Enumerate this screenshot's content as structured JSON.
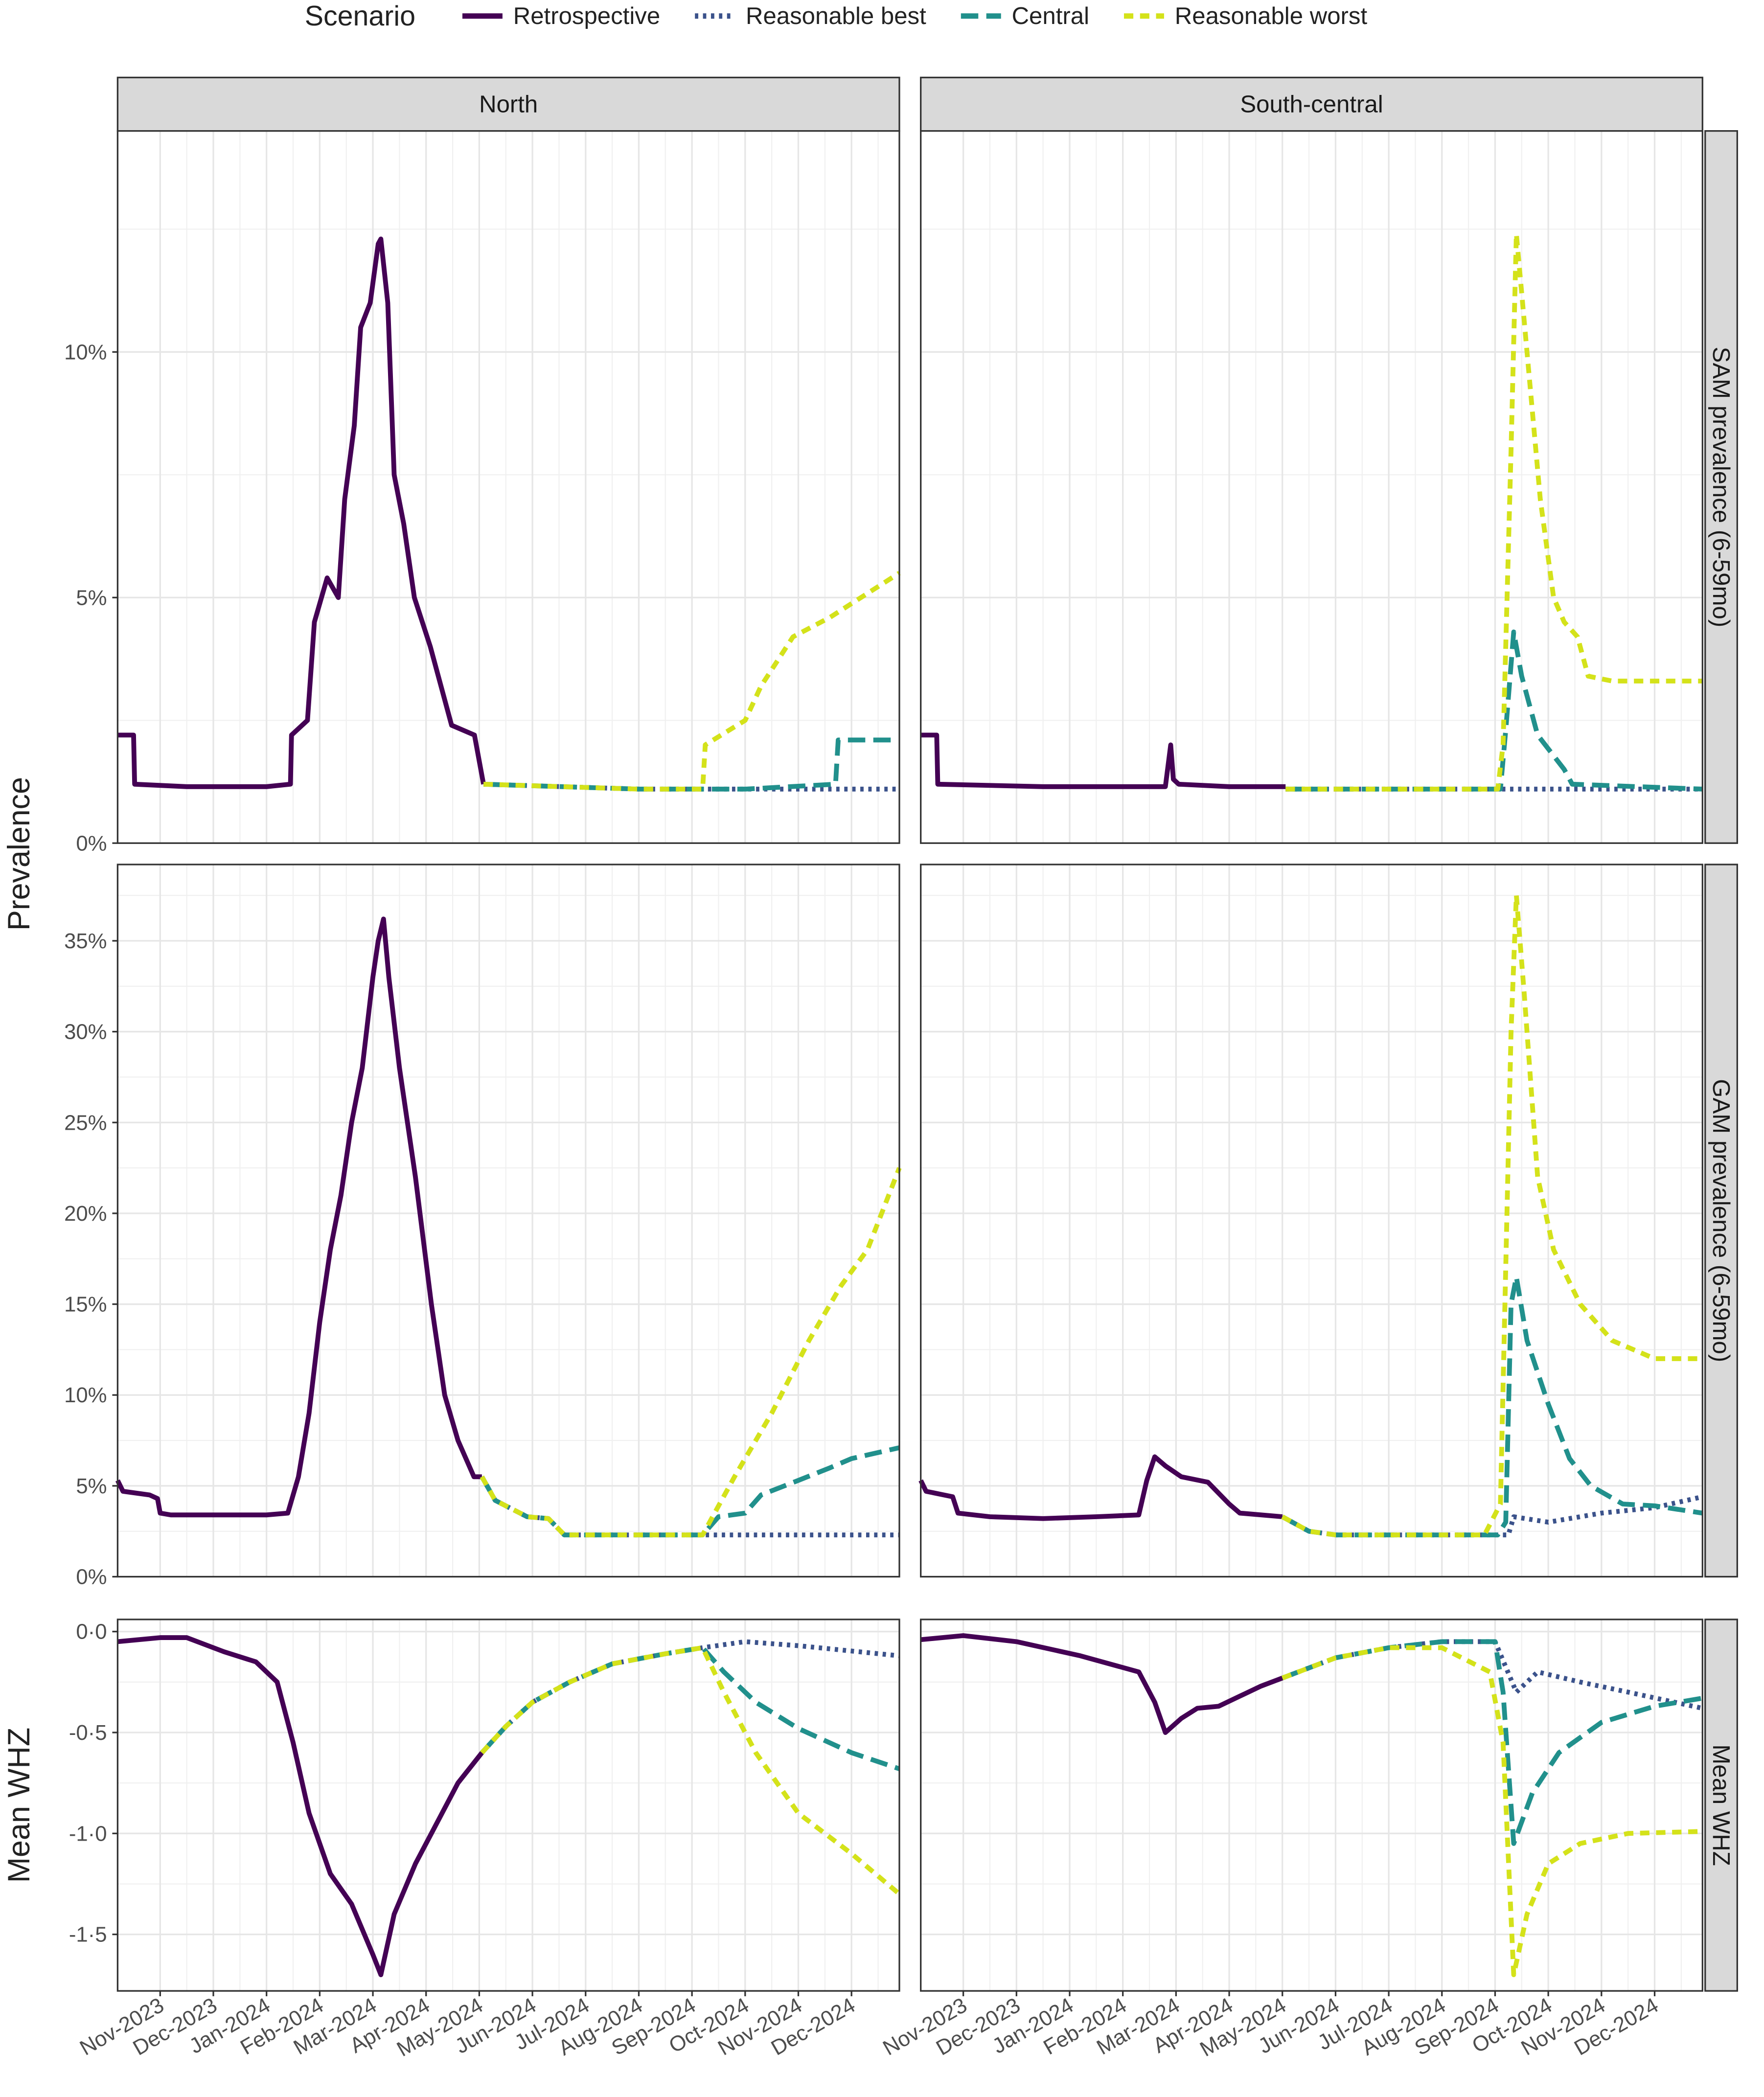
{
  "chart_data": {
    "type": "line",
    "legend_title": "Scenario",
    "legend_position": "top",
    "grid": true,
    "scenarios": [
      {
        "name": "Retrospective",
        "color": "#440154",
        "dash": "solid"
      },
      {
        "name": "Reasonable best",
        "color": "#3b528b",
        "dash": "dotted"
      },
      {
        "name": "Central",
        "color": "#21908c",
        "dash": "dashed"
      },
      {
        "name": "Reasonable worst",
        "color": "#d4e21a",
        "dash": "short-dashed"
      }
    ],
    "columns": [
      "North",
      "South-central"
    ],
    "ylabels": [
      "Prevalence",
      "Mean WHZ"
    ],
    "xlim": [
      0.2,
      14.9
    ],
    "xticks": [
      {
        "value": 1,
        "label": "Nov-2023"
      },
      {
        "value": 2,
        "label": "Dec-2023"
      },
      {
        "value": 3,
        "label": "Jan-2024"
      },
      {
        "value": 4,
        "label": "Feb-2024"
      },
      {
        "value": 5,
        "label": "Mar-2024"
      },
      {
        "value": 6,
        "label": "Apr-2024"
      },
      {
        "value": 7,
        "label": "May-2024"
      },
      {
        "value": 8,
        "label": "Jun-2024"
      },
      {
        "value": 9,
        "label": "Jul-2024"
      },
      {
        "value": 10,
        "label": "Aug-2024"
      },
      {
        "value": 11,
        "label": "Sep-2024"
      },
      {
        "value": 12,
        "label": "Oct-2024"
      },
      {
        "value": 13,
        "label": "Nov-2024"
      },
      {
        "value": 14,
        "label": "Dec-2024"
      }
    ],
    "rows": [
      {
        "label": "SAM prevalence (6-59mo)",
        "ylim": [
          0,
          14.5
        ],
        "yticks": [
          {
            "value": 0,
            "label": "0%"
          },
          {
            "value": 5,
            "label": "5%"
          },
          {
            "value": 10,
            "label": "10%"
          }
        ]
      },
      {
        "label": "GAM prevalence (6-59mo)",
        "ylim": [
          0,
          39.2
        ],
        "yticks": [
          {
            "value": 0,
            "label": "0%"
          },
          {
            "value": 5,
            "label": "5%"
          },
          {
            "value": 10,
            "label": "10%"
          },
          {
            "value": 15,
            "label": "15%"
          },
          {
            "value": 20,
            "label": "20%"
          },
          {
            "value": 25,
            "label": "25%"
          },
          {
            "value": 30,
            "label": "30%"
          },
          {
            "value": 35,
            "label": "35%"
          }
        ]
      },
      {
        "label": "Mean WHZ",
        "ylim": [
          -1.78,
          0.06
        ],
        "yticks": [
          {
            "value": -1.5,
            "label": "-1·5"
          },
          {
            "value": -1,
            "label": "-1·0"
          },
          {
            "value": -0.5,
            "label": "-0·5"
          },
          {
            "value": 0,
            "label": "0·0"
          }
        ]
      }
    ],
    "panels": [
      {
        "series": [
          {
            "x": [
              0.2,
              0.5,
              0.52,
              1.5,
              3.0,
              3.45,
              3.47,
              3.77,
              3.9,
              4.14,
              4.35,
              4.47,
              4.65,
              4.77,
              4.95,
              5.1,
              5.15,
              5.28,
              5.4,
              5.58,
              5.78,
              6.08,
              6.28,
              6.48,
              6.91,
              7.08
            ],
            "values": [
              2.2,
              2.2,
              1.2,
              1.15,
              1.15,
              1.2,
              2.2,
              2.5,
              4.5,
              5.4,
              5.0,
              7.0,
              8.5,
              10.5,
              11.0,
              12.2,
              12.3,
              11.0,
              7.5,
              6.5,
              5.0,
              4.0,
              3.2,
              2.4,
              2.2,
              1.2
            ]
          },
          {
            "x": [
              7.08,
              10,
              14.9
            ],
            "values": [
              1.2,
              1.1,
              1.1
            ]
          },
          {
            "x": [
              7.08,
              10,
              12,
              13.7,
              13.75,
              14.9
            ],
            "values": [
              1.2,
              1.1,
              1.1,
              1.2,
              2.1,
              2.1
            ]
          },
          {
            "x": [
              7.08,
              10,
              11.2,
              11.25,
              12.0,
              12.3,
              12.9,
              13.6,
              14.9
            ],
            "values": [
              1.2,
              1.1,
              1.1,
              2.0,
              2.5,
              3.2,
              4.2,
              4.6,
              5.5
            ]
          }
        ]
      },
      {
        "series": [
          {
            "x": [
              0.2,
              0.5,
              0.52,
              2.5,
              4.8,
              4.9,
              4.95,
              5.05,
              6.0,
              7.06
            ],
            "values": [
              2.2,
              2.2,
              1.2,
              1.15,
              1.15,
              2.0,
              1.3,
              1.2,
              1.15,
              1.15
            ]
          },
          {
            "x": [
              7.06,
              14.9
            ],
            "values": [
              1.1,
              1.1
            ]
          },
          {
            "x": [
              7.06,
              11.1,
              11.2,
              11.35,
              11.5,
              11.8,
              12.3,
              12.45,
              14.9
            ],
            "values": [
              1.1,
              1.1,
              2.3,
              4.3,
              3.4,
              2.2,
              1.5,
              1.2,
              1.1
            ]
          },
          {
            "x": [
              7.06,
              11.05,
              11.15,
              11.3,
              11.4,
              11.6,
              11.85,
              12.1,
              12.3,
              12.55,
              12.75,
              13.2,
              14.9
            ],
            "values": [
              1.1,
              1.1,
              2.0,
              8,
              12.4,
              10,
              7,
              5,
              4.5,
              4.2,
              3.4,
              3.3,
              3.3
            ]
          }
        ]
      },
      {
        "series": [
          {
            "x": [
              0.2,
              0.3,
              0.8,
              0.95,
              1.0,
              1.2,
              3.0,
              3.4,
              3.6,
              3.8,
              4.0,
              4.2,
              4.4,
              4.6,
              4.8,
              5.0,
              5.1,
              5.2,
              5.3,
              5.5,
              5.8,
              6.1,
              6.35,
              6.6,
              6.9,
              7.05
            ],
            "values": [
              5.3,
              4.7,
              4.5,
              4.3,
              3.5,
              3.4,
              3.4,
              3.5,
              5.5,
              9,
              14,
              18,
              21,
              25,
              28,
              33,
              35,
              36.2,
              33,
              28,
              22,
              15,
              10,
              7.5,
              5.5,
              5.5
            ]
          },
          {
            "x": [
              7.05,
              7.3,
              7.9,
              8.3,
              8.6,
              14.9
            ],
            "values": [
              5.5,
              4.2,
              3.3,
              3.2,
              2.3,
              2.3
            ]
          },
          {
            "x": [
              7.05,
              7.3,
              7.9,
              8.3,
              8.6,
              11.2,
              11.5,
              12.0,
              12.3,
              13.0,
              13.6,
              14.0,
              14.9
            ],
            "values": [
              5.5,
              4.2,
              3.3,
              3.2,
              2.3,
              2.3,
              3.3,
              3.5,
              4.5,
              5.3,
              6.0,
              6.5,
              7.1
            ]
          },
          {
            "x": [
              7.05,
              7.3,
              7.9,
              8.3,
              8.6,
              11.2,
              11.8,
              12.5,
              13.2,
              13.8,
              14.3,
              14.9
            ],
            "values": [
              5.5,
              4.2,
              3.3,
              3.2,
              2.3,
              2.3,
              5.5,
              9,
              13,
              16,
              18,
              22.5
            ]
          }
        ]
      },
      {
        "series": [
          {
            "x": [
              0.2,
              0.3,
              0.8,
              0.9,
              1.5,
              2.5,
              3.5,
              4.3,
              4.45,
              4.6,
              4.8,
              5.1,
              5.6,
              6.0,
              6.2,
              7.0
            ],
            "values": [
              5.3,
              4.7,
              4.4,
              3.5,
              3.3,
              3.2,
              3.3,
              3.4,
              5.3,
              6.6,
              6.1,
              5.5,
              5.2,
              4.0,
              3.5,
              3.3
            ]
          },
          {
            "x": [
              7.0,
              7.5,
              8.0,
              11.25,
              11.35,
              12.0,
              13.0,
              14.0,
              14.9
            ],
            "values": [
              3.3,
              2.5,
              2.3,
              2.3,
              3.3,
              3.0,
              3.5,
              3.8,
              4.4
            ]
          },
          {
            "x": [
              7.0,
              7.5,
              8.0,
              11.05,
              11.2,
              11.3,
              11.4,
              11.6,
              12.0,
              12.4,
              12.8,
              13.4,
              14.0,
              14.9
            ],
            "values": [
              3.3,
              2.5,
              2.3,
              2.3,
              3,
              15,
              16.5,
              13,
              9.5,
              6.5,
              5.0,
              4.0,
              3.9,
              3.5
            ]
          },
          {
            "x": [
              7.0,
              7.5,
              8.0,
              10.8,
              11.1,
              11.3,
              11.4,
              11.55,
              11.8,
              12.1,
              12.6,
              13.2,
              14.0,
              14.9
            ],
            "values": [
              3.3,
              2.5,
              2.3,
              2.3,
              4,
              30,
              37.5,
              32,
              22,
              18,
              15,
              13,
              12,
              12
            ]
          }
        ]
      },
      {
        "series": [
          {
            "x": [
              0.2,
              1.0,
              1.5,
              2.2,
              2.8,
              3.2,
              3.5,
              3.8,
              4.2,
              4.6,
              5.0,
              5.15,
              5.4,
              5.8,
              6.2,
              6.6,
              7.05
            ],
            "values": [
              -0.05,
              -0.03,
              -0.03,
              -0.1,
              -0.15,
              -0.25,
              -0.55,
              -0.9,
              -1.2,
              -1.35,
              -1.6,
              -1.7,
              -1.4,
              -1.15,
              -0.95,
              -0.75,
              -0.6
            ]
          },
          {
            "x": [
              7.05,
              7.5,
              8.0,
              8.7,
              9.5,
              10.5,
              11.2,
              12.0,
              13.0,
              14.9
            ],
            "values": [
              -0.6,
              -0.47,
              -0.35,
              -0.25,
              -0.16,
              -0.11,
              -0.08,
              -0.05,
              -0.07,
              -0.12
            ]
          },
          {
            "x": [
              7.05,
              7.5,
              8.0,
              8.7,
              9.5,
              10.5,
              11.2,
              11.6,
              12.2,
              13.0,
              14.0,
              14.9
            ],
            "values": [
              -0.6,
              -0.47,
              -0.35,
              -0.25,
              -0.16,
              -0.11,
              -0.08,
              -0.2,
              -0.35,
              -0.48,
              -0.6,
              -0.68
            ]
          },
          {
            "x": [
              7.05,
              7.5,
              8.0,
              8.7,
              9.5,
              10.5,
              11.2,
              11.6,
              12.2,
              13.0,
              14.0,
              14.9
            ],
            "values": [
              -0.6,
              -0.47,
              -0.35,
              -0.25,
              -0.16,
              -0.11,
              -0.08,
              -0.3,
              -0.6,
              -0.9,
              -1.1,
              -1.3
            ]
          }
        ]
      },
      {
        "series": [
          {
            "x": [
              0.2,
              1.0,
              2.0,
              3.2,
              4.3,
              4.6,
              4.8,
              5.1,
              5.4,
              5.8,
              6.2,
              6.6,
              7.0
            ],
            "values": [
              -0.04,
              -0.02,
              -0.05,
              -0.12,
              -0.2,
              -0.35,
              -0.5,
              -0.43,
              -0.38,
              -0.37,
              -0.32,
              -0.27,
              -0.23
            ]
          },
          {
            "x": [
              7.0,
              8.0,
              9.0,
              10.0,
              11.0,
              11.4,
              11.8,
              12.6,
              13.5,
              14.9
            ],
            "values": [
              -0.23,
              -0.13,
              -0.08,
              -0.05,
              -0.05,
              -0.3,
              -0.2,
              -0.25,
              -0.3,
              -0.38
            ]
          },
          {
            "x": [
              7.0,
              8.0,
              9.0,
              10.0,
              11.0,
              11.15,
              11.35,
              11.7,
              12.2,
              13.0,
              14.0,
              14.9
            ],
            "values": [
              -0.23,
              -0.13,
              -0.08,
              -0.05,
              -0.05,
              -0.3,
              -1.05,
              -0.8,
              -0.6,
              -0.45,
              -0.37,
              -0.33
            ]
          },
          {
            "x": [
              7.0,
              8.0,
              9.0,
              10.0,
              10.9,
              11.15,
              11.35,
              11.6,
              12.0,
              12.6,
              13.5,
              14.9
            ],
            "values": [
              -0.23,
              -0.13,
              -0.08,
              -0.08,
              -0.2,
              -0.55,
              -1.7,
              -1.4,
              -1.15,
              -1.05,
              -1.0,
              -0.99
            ]
          }
        ]
      }
    ]
  }
}
